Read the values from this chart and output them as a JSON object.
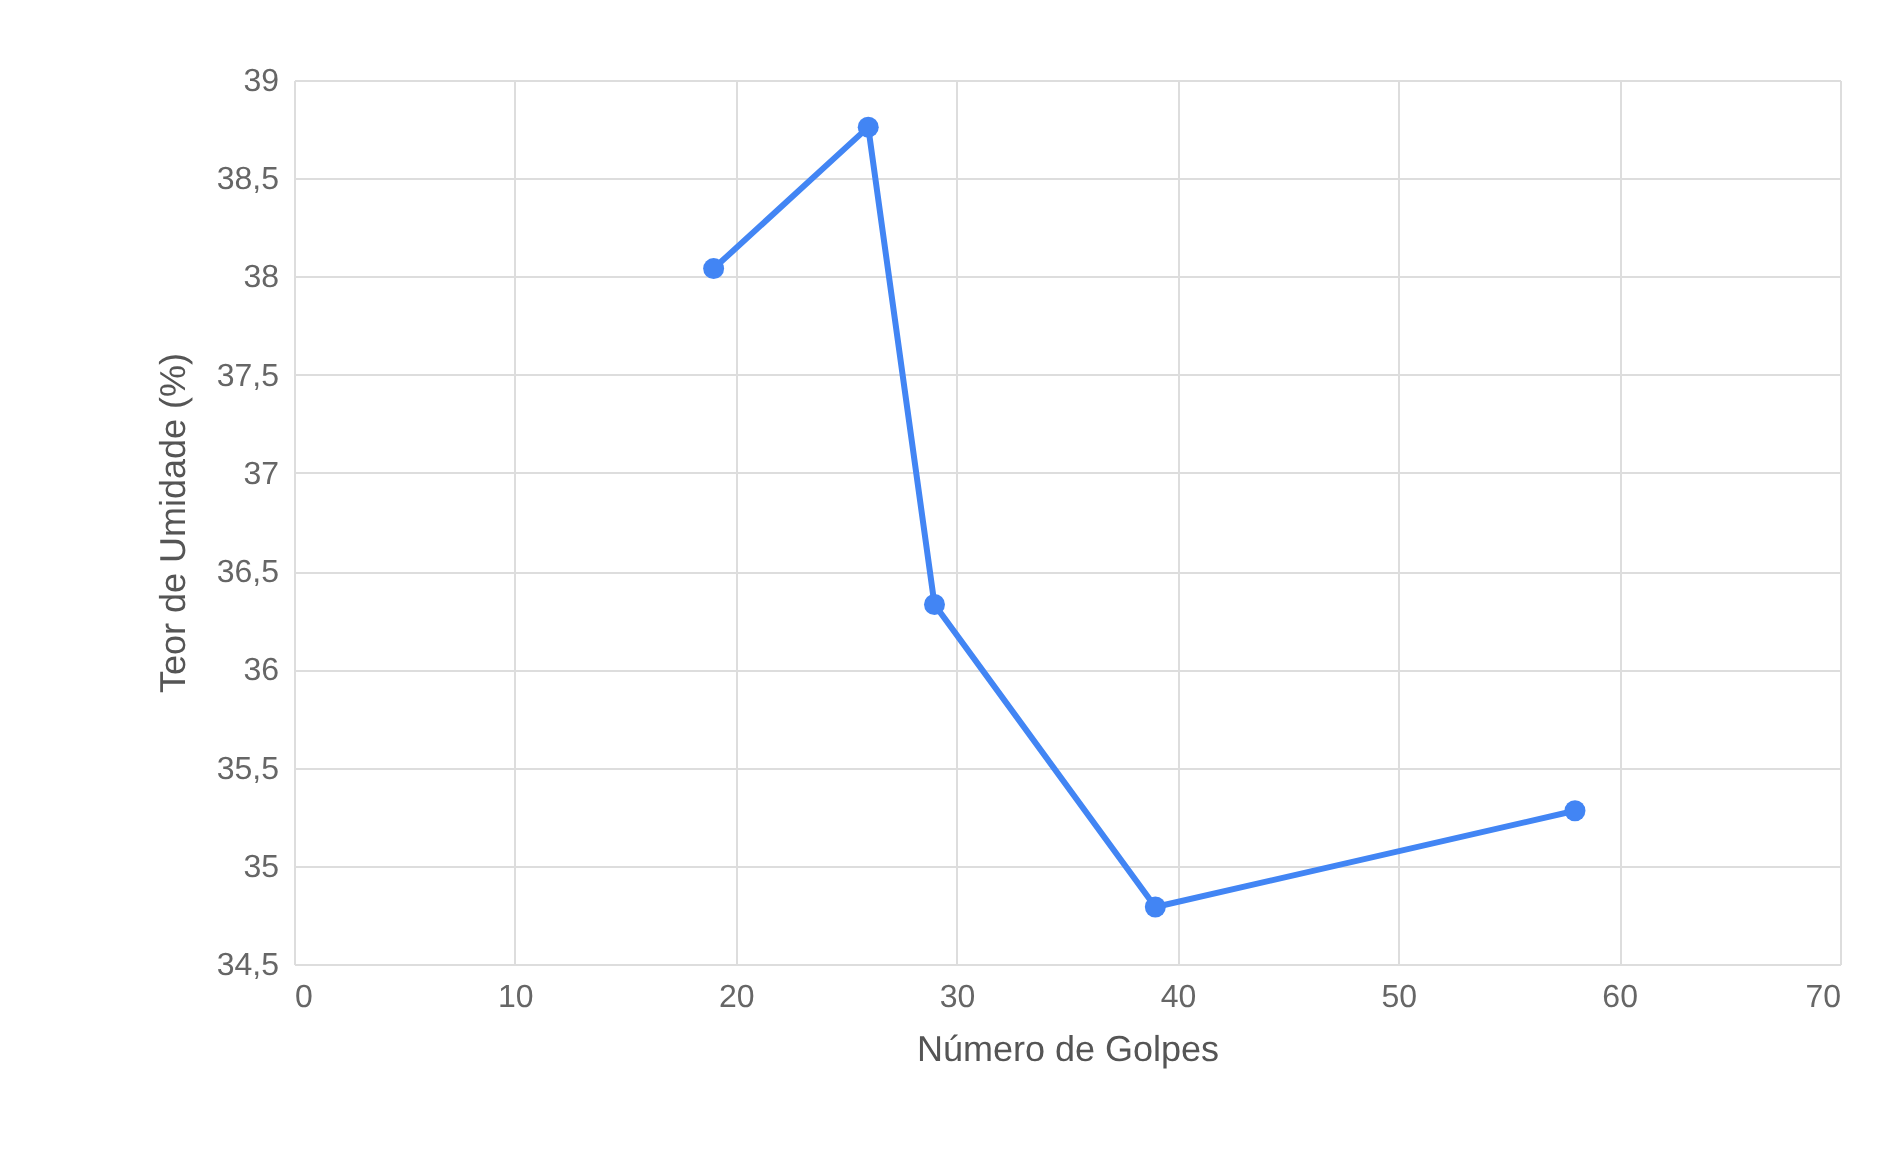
{
  "chart_data": {
    "type": "line",
    "xlabel": "Número de Golpes",
    "ylabel": "Teor de Umidade (%)",
    "x": [
      19,
      26,
      29,
      39,
      58
    ],
    "series": [
      {
        "color": "#4285f4",
        "values": [
          38.04,
          38.76,
          36.33,
          34.79,
          35.28
        ]
      }
    ],
    "xlim": [
      0,
      70
    ],
    "xticks": [
      0,
      10,
      20,
      30,
      40,
      50,
      60,
      70
    ],
    "ylim": [
      34.5,
      39
    ],
    "yticks": [
      {
        "value": 34.5,
        "label": "34,5"
      },
      35,
      {
        "value": 35.5,
        "label": "35,5"
      },
      36,
      {
        "value": 36.5,
        "label": "36,5"
      },
      37,
      {
        "value": 37.5,
        "label": "37,5"
      },
      38,
      {
        "value": 38.5,
        "label": "38,5"
      },
      39
    ],
    "grid": true,
    "marker": "circle",
    "line_style": "solid"
  }
}
